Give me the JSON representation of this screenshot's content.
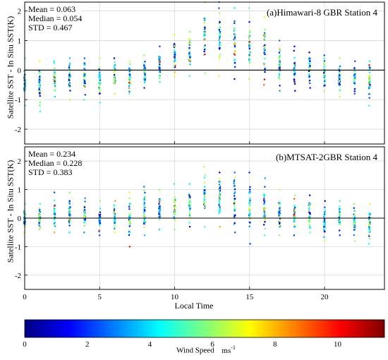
{
  "chart_data": {
    "type": "scatter",
    "x_axis_label": "Local Time",
    "x_range": [
      0,
      24
    ],
    "x_ticks": [
      0,
      5,
      10,
      15,
      20
    ],
    "grid": true,
    "panels": [
      {
        "id": "a",
        "title": "(a)Himawari-8 GBR Station 4",
        "stats": [
          "Mean = 0.063",
          "Median = 0.054",
          "STD = 0.467"
        ],
        "ylabel": "Satellite SST - In Situ SST(K)",
        "ylim": [
          -2.5,
          2.3
        ],
        "yticks": [
          -2,
          -1,
          0,
          1,
          2
        ],
        "hours": [
          0,
          1,
          2,
          3,
          4,
          5,
          6,
          7,
          8,
          9,
          10,
          11,
          12,
          13,
          14,
          15,
          16,
          17,
          18,
          19,
          20,
          21,
          22,
          23
        ],
        "range_min": [
          -1.2,
          -1.4,
          -0.9,
          -1.0,
          -1.0,
          -1.1,
          -0.8,
          -0.8,
          -0.6,
          -0.4,
          -0.2,
          -0.2,
          -0.1,
          -0.2,
          -0.3,
          -0.3,
          -0.5,
          -0.7,
          -0.7,
          -0.6,
          -0.7,
          -0.9,
          -0.8,
          -1.2
        ],
        "range_max": [
          0.4,
          0.3,
          0.3,
          0.4,
          0.4,
          0.4,
          0.4,
          0.3,
          0.5,
          0.8,
          1.2,
          1.3,
          2.3,
          2.3,
          2.1,
          2.1,
          1.8,
          1.0,
          0.8,
          0.6,
          0.5,
          0.4,
          0.3,
          0.3
        ]
      },
      {
        "id": "b",
        "title": "(b)MTSAT-2GBR Station 4",
        "stats": [
          "Mean = 0.234",
          "Median = 0.228",
          "STD = 0.383"
        ],
        "ylabel": "Satellite SST - In Situ SST(K)",
        "ylim": [
          -2.5,
          2.5
        ],
        "yticks": [
          -2,
          -1,
          0,
          1,
          2
        ],
        "hours": [
          0,
          1,
          2,
          3,
          4,
          5,
          6,
          7,
          8,
          9,
          10,
          11,
          12,
          13,
          14,
          15,
          16,
          17,
          18,
          19,
          20,
          21,
          22,
          23
        ],
        "range_min": [
          -0.5,
          -0.4,
          -0.5,
          -0.5,
          -0.5,
          -0.6,
          -0.5,
          -1.0,
          -0.6,
          -0.4,
          -0.4,
          -0.3,
          -0.3,
          -0.3,
          -0.5,
          -0.9,
          -0.6,
          -0.6,
          -0.6,
          -0.5,
          -0.8,
          -0.6,
          -0.8,
          -0.9
        ],
        "range_max": [
          0.5,
          0.5,
          0.9,
          0.9,
          0.7,
          0.6,
          0.6,
          0.9,
          1.1,
          1.0,
          1.2,
          1.2,
          1.8,
          1.6,
          1.6,
          1.6,
          1.4,
          1.0,
          0.8,
          0.8,
          0.6,
          0.6,
          0.5,
          0.5
        ]
      }
    ],
    "colorbar": {
      "label": "Wind Speed",
      "unit": "ms",
      "unit_exponent": "-1",
      "range": [
        0,
        11.5
      ],
      "ticks": [
        0,
        2,
        4,
        6,
        8,
        10
      ],
      "colormap": [
        "#00007f",
        "#0000ff",
        "#007fff",
        "#00ffff",
        "#7fff7f",
        "#ffff00",
        "#ff7f00",
        "#ff0000",
        "#7f0000"
      ]
    }
  }
}
